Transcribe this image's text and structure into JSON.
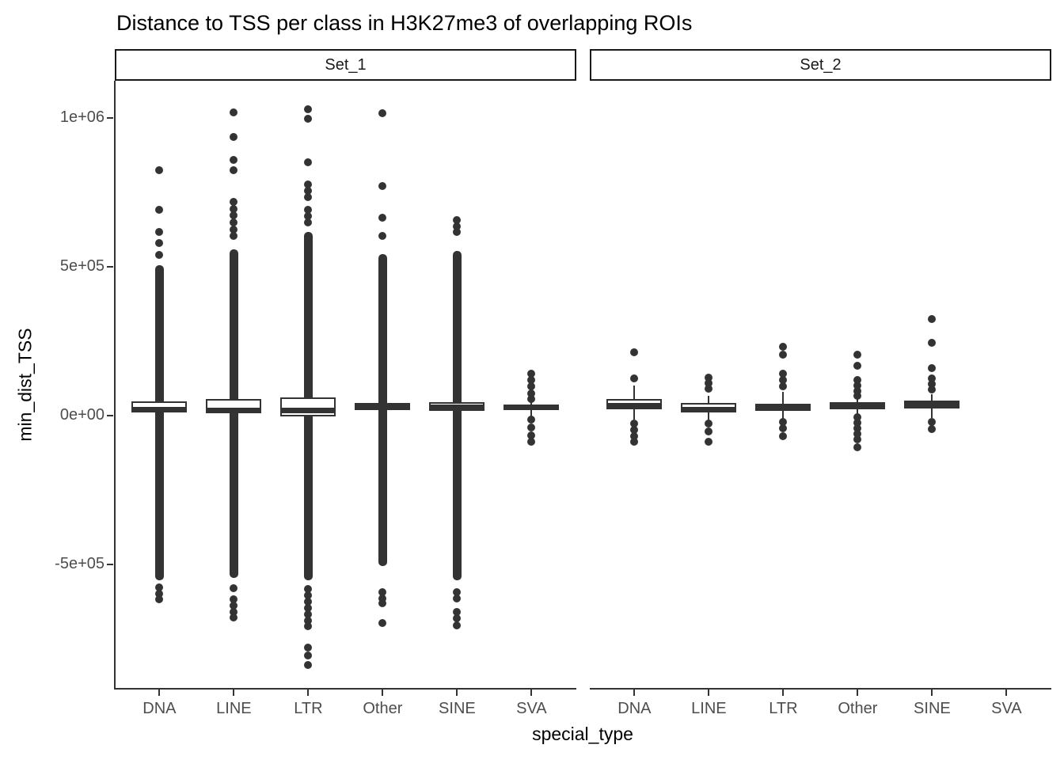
{
  "chart_data": {
    "type": "boxplot",
    "title": "Distance to TSS per class in H3K27me3 of overlapping ROIs",
    "xlabel": "special_type",
    "ylabel": "min_dist_TSS",
    "categories": [
      "DNA",
      "LINE",
      "LTR",
      "Other",
      "SINE",
      "SVA"
    ],
    "y_ticks": [
      {
        "label": "1e+06",
        "value": 1000000
      },
      {
        "label": "5e+05",
        "value": 500000
      },
      {
        "label": "0e+00",
        "value": 0
      },
      {
        "label": "-5e+05",
        "value": -500000
      }
    ],
    "ylim": [
      -920000,
      1125000
    ],
    "grid": false,
    "legend": "none",
    "facets": [
      {
        "name": "Set_1",
        "boxes": [
          {
            "category": "DNA",
            "q1": 11000,
            "median": 21000,
            "q3": 48000,
            "whisker_low": -553000,
            "whisker_high": 505000,
            "dense_column": [
              -553000,
              505000
            ],
            "outliers_high": [
              540000,
              580000,
              617000,
              691000,
              824000
            ],
            "outliers_low": [
              -577000,
              -598000,
              -617000
            ]
          },
          {
            "category": "LINE",
            "q1": 8000,
            "median": 16000,
            "q3": 56000,
            "whisker_low": -545000,
            "whisker_high": 558000,
            "dense_column": [
              -545000,
              558000
            ],
            "outliers_high": [
              604000,
              625000,
              649000,
              673000,
              694000,
              718000,
              824000,
              859000,
              936000,
              1018000
            ],
            "outliers_low": [
              -580000,
              -617000,
              -638000,
              -660000,
              -678000
            ]
          },
          {
            "category": "LTR",
            "q1": -3000,
            "median": 16000,
            "q3": 61000,
            "whisker_low": -553000,
            "whisker_high": 617000,
            "dense_column": [
              -553000,
              617000
            ],
            "outliers_high": [
              649000,
              670000,
              691000,
              734000,
              755000,
              777000,
              851000,
              997000,
              1029000
            ],
            "outliers_low": [
              -582000,
              -604000,
              -625000,
              -646000,
              -668000,
              -689000,
              -707000,
              -779000,
              -806000,
              -838000
            ]
          },
          {
            "category": "Other",
            "q1": 21000,
            "median": 29000,
            "q3": 43000,
            "whisker_low": -505000,
            "whisker_high": 543000,
            "dense_column": [
              -505000,
              543000
            ],
            "outliers_high": [
              604000,
              665000,
              771000,
              1016000
            ],
            "outliers_low": [
              -593000,
              -614000,
              -630000,
              -697000
            ]
          },
          {
            "category": "SINE",
            "q1": 16000,
            "median": 27000,
            "q3": 45000,
            "whisker_low": -553000,
            "whisker_high": 553000,
            "dense_column": [
              -553000,
              553000
            ],
            "outliers_high": [
              617000,
              636000,
              657000
            ],
            "outliers_low": [
              -593000,
              -614000,
              -660000,
              -681000,
              -705000
            ]
          },
          {
            "category": "SVA",
            "q1": 19000,
            "median": 29000,
            "q3": 37000,
            "whisker_low": -5000,
            "whisker_high": 53000,
            "dense_column": null,
            "outliers_high": [
              56000,
              74000,
              98000,
              120000,
              141000
            ],
            "outliers_low": [
              -13000,
              -40000,
              -66000,
              -88000
            ]
          }
        ]
      },
      {
        "name": "Set_2",
        "boxes": [
          {
            "category": "DNA",
            "q1": 21000,
            "median": 32000,
            "q3": 56000,
            "whisker_low": -13000,
            "whisker_high": 101000,
            "dense_column": null,
            "outliers_high": [
              125000,
              213000
            ],
            "outliers_low": [
              -27000,
              -48000,
              -69000,
              -88000
            ]
          },
          {
            "category": "LINE",
            "q1": 13000,
            "median": 21000,
            "q3": 43000,
            "whisker_low": -19000,
            "whisker_high": 66000,
            "dense_column": null,
            "outliers_high": [
              90000,
              109000,
              128000
            ],
            "outliers_low": [
              -27000,
              -53000,
              -88000
            ]
          },
          {
            "category": "LTR",
            "q1": 16000,
            "median": 29000,
            "q3": 40000,
            "whisker_low": -13000,
            "whisker_high": 80000,
            "dense_column": null,
            "outliers_high": [
              98000,
              120000,
              141000,
              205000,
              231000
            ],
            "outliers_low": [
              -21000,
              -43000,
              -69000
            ]
          },
          {
            "category": "Other",
            "q1": 21000,
            "median": 35000,
            "q3": 45000,
            "whisker_low": 0,
            "whisker_high": 59000,
            "dense_column": null,
            "outliers_high": [
              66000,
              82000,
              101000,
              120000,
              168000,
              205000
            ],
            "outliers_low": [
              -5000,
              -24000,
              -43000,
              -61000,
              -80000,
              -106000
            ]
          },
          {
            "category": "SINE",
            "q1": 24000,
            "median": 35000,
            "q3": 51000,
            "whisker_low": -8000,
            "whisker_high": 72000,
            "dense_column": null,
            "outliers_high": [
              88000,
              106000,
              125000,
              160000,
              245000,
              324000
            ],
            "outliers_low": [
              -21000,
              -45000
            ]
          },
          null
        ]
      }
    ],
    "colors": {
      "ink": "#333333",
      "box_fill": "#ffffff",
      "tick_text": "#4d4d4d",
      "strip_border": "#1a1a1a"
    }
  }
}
